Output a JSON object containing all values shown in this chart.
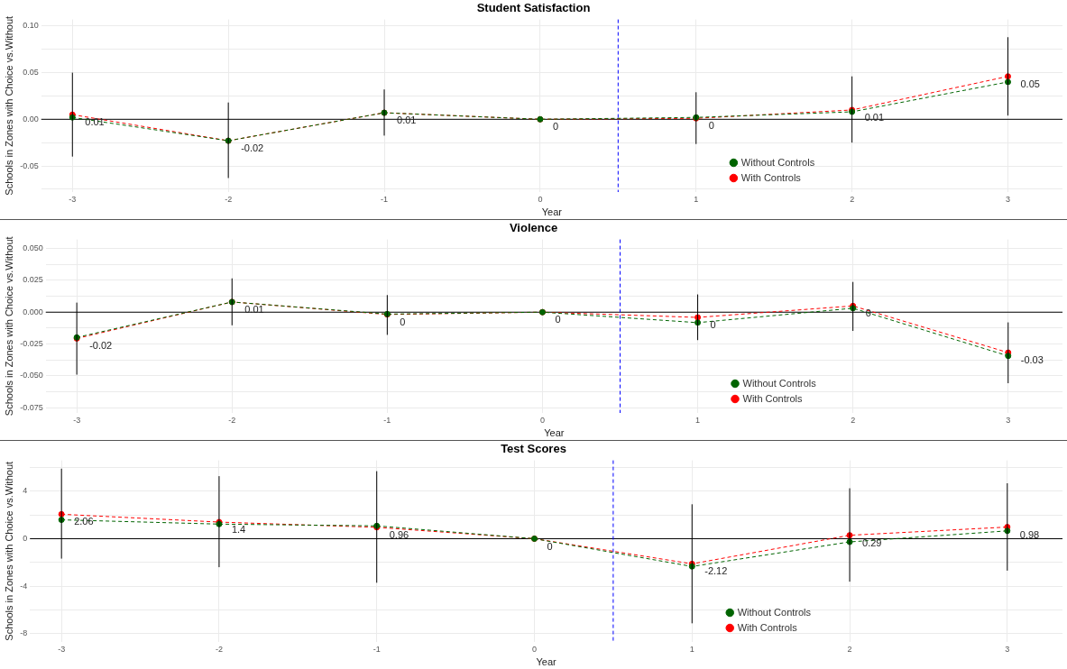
{
  "chart_data": [
    {
      "type": "line",
      "title": "Student Satisfaction",
      "xlabel": "Year",
      "ylabel": "Schools in Zones with Choice vs.Without",
      "x": [
        -3,
        -2,
        -1,
        0,
        1,
        2,
        3
      ],
      "xlim": [
        -3.2,
        3.35
      ],
      "xticks": [
        -3,
        -2,
        -1,
        0,
        1,
        2,
        3
      ],
      "ylim": [
        -0.078,
        0.107
      ],
      "yticks": [
        {
          "value": -0.075,
          "label": null
        },
        -0.05,
        {
          "value": -0.025,
          "label": null
        },
        {
          "value": 0,
          "label": "0.00"
        },
        {
          "value": 0.025,
          "label": null
        },
        0.05,
        {
          "value": 0.075,
          "label": null
        },
        {
          "value": 0.1,
          "label": "0.10"
        }
      ],
      "grid": true,
      "legend": "bottom right",
      "marker": "circle",
      "line_style": "dashed",
      "ref_lines": [
        {
          "axis": "y",
          "value": 0,
          "color": "#000000",
          "line_style": "solid"
        },
        {
          "axis": "x",
          "value": 0.5,
          "color": "#0000ff",
          "line_style": "dashed"
        }
      ],
      "series": [
        {
          "name": "With Controls",
          "color": "#ff0000",
          "values": [
            0.005,
            -0.023,
            0.007,
            0,
            0.001,
            0.01,
            0.046
          ],
          "errors": [
            [
              -0.04,
              0.05
            ],
            [
              -0.063,
              0.018
            ],
            [
              -0.0175,
              0.032
            ],
            null,
            [
              -0.0265,
              0.029
            ],
            [
              -0.025,
              0.046
            ],
            [
              0.004,
              0.088
            ]
          ],
          "value_labels": [
            "0.01",
            "-0.02",
            "0.01",
            "0",
            "0",
            "0.01",
            "0.05"
          ]
        },
        {
          "name": "Without Controls",
          "color": "#006400",
          "values": [
            0.002,
            -0.023,
            0.007,
            0,
            0.002,
            0.008,
            0.04
          ]
        }
      ]
    },
    {
      "type": "line",
      "title": "Violence",
      "xlabel": "Year",
      "ylabel": "Schools in Zones with Choice vs.Without",
      "x": [
        -3,
        -2,
        -1,
        0,
        1,
        2,
        3
      ],
      "xlim": [
        -3.2,
        3.35
      ],
      "xticks": [
        -3,
        -2,
        -1,
        0,
        1,
        2,
        3
      ],
      "ylim": [
        -0.079,
        0.057
      ],
      "yticks": [
        -0.075,
        {
          "value": -0.0625,
          "label": null
        },
        {
          "value": -0.05,
          "label": "-0.050"
        },
        {
          "value": -0.0375,
          "label": null
        },
        -0.025,
        {
          "value": -0.0125,
          "label": null
        },
        {
          "value": 0,
          "label": "0.000"
        },
        {
          "value": 0.0125,
          "label": null
        },
        0.025,
        {
          "value": 0.0375,
          "label": null
        },
        {
          "value": 0.05,
          "label": "0.050"
        }
      ],
      "grid": true,
      "legend": "bottom right",
      "marker": "circle",
      "line_style": "dashed",
      "ref_lines": [
        {
          "axis": "y",
          "value": 0,
          "color": "#000000",
          "line_style": "solid"
        },
        {
          "axis": "x",
          "value": 0.5,
          "color": "#0000ff",
          "line_style": "dashed"
        }
      ],
      "series": [
        {
          "name": "With Controls",
          "color": "#ff0000",
          "values": [
            -0.0206,
            0.008,
            -0.0018,
            0,
            -0.0041,
            0.0049,
            -0.0317
          ],
          "errors": [
            [
              -0.049,
              0.0075
            ],
            [
              -0.0103,
              0.0265
            ],
            [
              -0.0178,
              0.0134
            ],
            null,
            [
              -0.0219,
              0.0139
            ],
            [
              -0.0147,
              0.0237
            ],
            [
              -0.0557,
              -0.008
            ]
          ],
          "value_labels": [
            "-0.02",
            "0.01",
            "0",
            "0",
            "0",
            "0",
            "-0.03"
          ]
        },
        {
          "name": "Without Controls",
          "color": "#006400",
          "values": [
            -0.0198,
            0.008,
            -0.0015,
            0,
            -0.0082,
            0.0031,
            -0.0343
          ]
        }
      ]
    },
    {
      "type": "line",
      "title": "Test Scores",
      "xlabel": "Year",
      "ylabel": "Schools in Zones with Choice vs.Without",
      "x": [
        -3,
        -2,
        -1,
        0,
        1,
        2,
        3
      ],
      "xlim": [
        -3.2,
        3.35
      ],
      "xticks": [
        -3,
        -2,
        -1,
        0,
        1,
        2,
        3
      ],
      "ylim": [
        -8.7,
        6.6
      ],
      "yticks": [
        -8,
        {
          "value": -6,
          "label": null
        },
        -4,
        {
          "value": -2,
          "label": null
        },
        0,
        {
          "value": 2,
          "label": null
        },
        4,
        {
          "value": 6,
          "label": null
        }
      ],
      "grid": true,
      "legend": "bottom right",
      "marker": "circle",
      "line_style": "dashed",
      "ref_lines": [
        {
          "axis": "y",
          "value": 0,
          "color": "#000000",
          "line_style": "solid"
        },
        {
          "axis": "x",
          "value": 0.5,
          "color": "#0000ff",
          "line_style": "dashed"
        }
      ],
      "series": [
        {
          "name": "With Controls",
          "color": "#ff0000",
          "values": [
            2.06,
            1.4,
            0.96,
            0,
            -2.12,
            0.29,
            0.98
          ],
          "errors": [
            [
              -1.68,
              5.9
            ],
            [
              -2.4,
              5.27
            ],
            [
              -3.71,
              5.69
            ],
            null,
            [
              -7.13,
              2.9
            ],
            [
              -3.62,
              4.25
            ],
            [
              -2.69,
              4.67
            ]
          ],
          "value_labels": [
            "2.06",
            "1.4",
            "0.96",
            "0",
            "-2.12",
            "0.29",
            "0.98"
          ]
        },
        {
          "name": "Without Controls",
          "color": "#006400",
          "values": [
            1.59,
            1.23,
            1.08,
            0,
            -2.34,
            -0.27,
            0.66
          ]
        }
      ]
    }
  ]
}
